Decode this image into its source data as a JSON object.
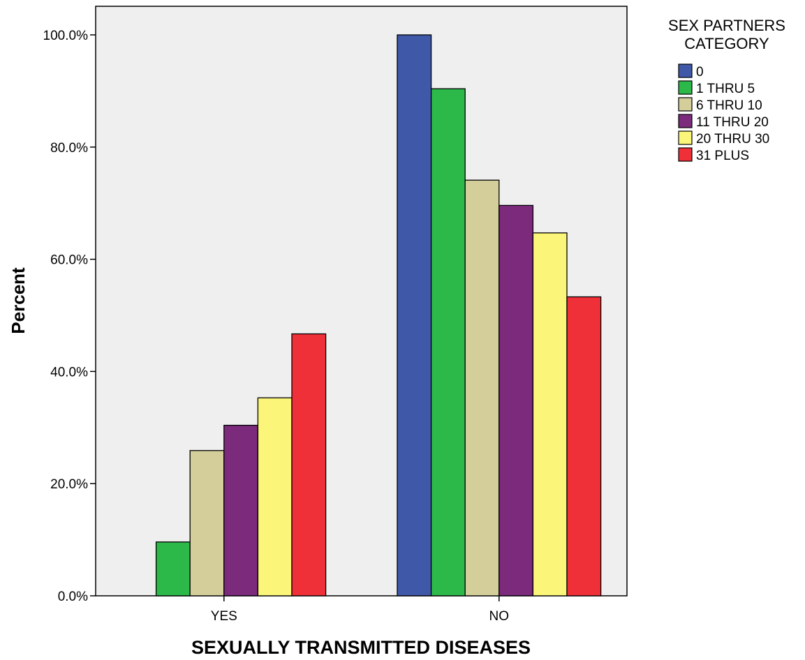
{
  "chart_data": {
    "type": "bar",
    "xlabel": "SEXUALLY TRANSMITTED DISEASES",
    "ylabel": "Percent",
    "categories": [
      "YES",
      "NO"
    ],
    "y_ticks": [
      "0.0%",
      "20.0%",
      "40.0%",
      "60.0%",
      "80.0%",
      "100.0%"
    ],
    "ylim": [
      0,
      105
    ],
    "grid": false,
    "legend": {
      "title_lines": [
        "SEX PARTNERS",
        "CATEGORY"
      ],
      "placement": "right"
    },
    "series": [
      {
        "name": "0",
        "color": "#3f59a8",
        "values": [
          0.0,
          100.0
        ]
      },
      {
        "name": "1 THRU 5",
        "color": "#2db84a",
        "values": [
          9.6,
          90.4
        ]
      },
      {
        "name": "6 THRU 10",
        "color": "#d3ce9a",
        "values": [
          25.9,
          74.1
        ]
      },
      {
        "name": "11 THRU 20",
        "color": "#7b2a7c",
        "values": [
          30.4,
          69.6
        ]
      },
      {
        "name": "20 THRU 30",
        "color": "#fbf679",
        "values": [
          35.3,
          64.7
        ]
      },
      {
        "name": "31 PLUS",
        "color": "#ef3038",
        "values": [
          46.7,
          53.3
        ]
      }
    ]
  }
}
